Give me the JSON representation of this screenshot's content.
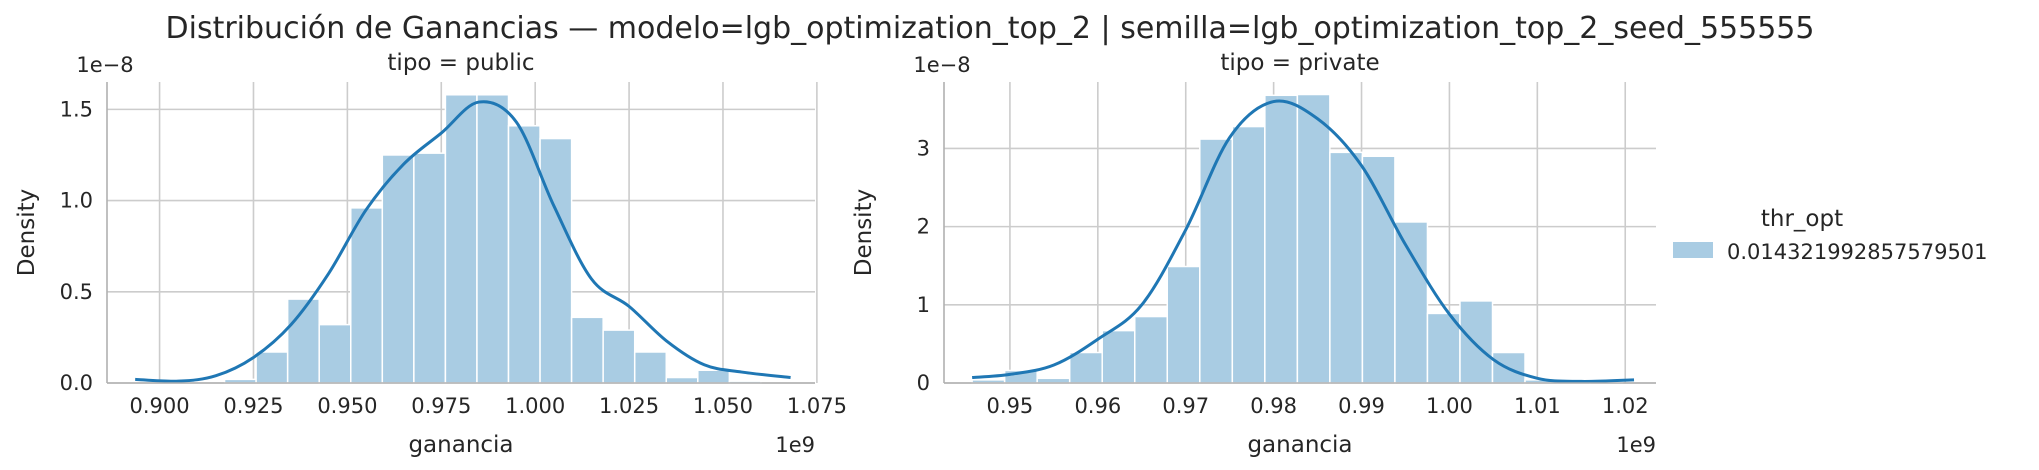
{
  "figure": {
    "title": "Distribución de Ganancias — modelo=lgb_optimization_top_2 | semilla=lgb_optimization_top_2_seed_555555",
    "legend": {
      "title": "thr_opt",
      "entries": [
        "0.014321992857579501"
      ],
      "placement": "right"
    },
    "colors": {
      "hist_fill": "#a9cce3",
      "kde_line": "#1f77b4",
      "grid": "#cccccc",
      "axis": "#b0b0b0"
    }
  },
  "chart_data": [
    {
      "type": "histogram",
      "subplot_title": "tipo = public",
      "xlabel": "ganancia",
      "ylabel": "Density",
      "x_offset_label": "1e9",
      "y_offset_label": "1e−8",
      "xlim": [
        0.886,
        1.0745
      ],
      "ylim": [
        0,
        1.65
      ],
      "grid": true,
      "xticks": [
        0.9,
        0.925,
        0.95,
        0.975,
        1.0,
        1.025,
        1.05,
        1.075
      ],
      "xtick_labels": [
        "0.900",
        "0.925",
        "0.950",
        "0.975",
        "1.000",
        "1.025",
        "1.050",
        "1.075"
      ],
      "yticks": [
        0,
        0.5,
        1.0,
        1.5
      ],
      "ytick_labels": [
        "0.0",
        "0.5",
        "1.0",
        "1.5"
      ],
      "bins": {
        "start": 0.9005,
        "width": 0.0084,
        "values": [
          0.0,
          0.0,
          0.02,
          0.17,
          0.46,
          0.32,
          0.96,
          1.25,
          1.26,
          1.58,
          1.58,
          1.41,
          1.34,
          0.36,
          0.29,
          0.17,
          0.03,
          0.07,
          0.01
        ]
      },
      "kde": {
        "x": [
          0.8935,
          0.905,
          0.915,
          0.925,
          0.935,
          0.945,
          0.955,
          0.965,
          0.975,
          0.985,
          0.995,
          1.005,
          1.015,
          1.025,
          1.035,
          1.045,
          1.055,
          1.068
        ],
        "y": [
          0.02,
          0.01,
          0.04,
          0.14,
          0.32,
          0.6,
          0.95,
          1.2,
          1.37,
          1.54,
          1.43,
          0.97,
          0.57,
          0.42,
          0.23,
          0.1,
          0.06,
          0.03
        ]
      }
    },
    {
      "type": "histogram",
      "subplot_title": "tipo = private",
      "xlabel": "ganancia",
      "ylabel": "Density",
      "x_offset_label": "1e9",
      "y_offset_label": "1e−8",
      "xlim": [
        0.9425,
        1.0235
      ],
      "ylim": [
        0,
        3.85
      ],
      "grid": true,
      "xticks": [
        0.95,
        0.96,
        0.97,
        0.98,
        0.99,
        1.0,
        1.01,
        1.02
      ],
      "xtick_labels": [
        "0.95",
        "0.96",
        "0.97",
        "0.98",
        "0.99",
        "1.00",
        "1.01",
        "1.02"
      ],
      "yticks": [
        0,
        1,
        2,
        3
      ],
      "ytick_labels": [
        "0",
        "1",
        "2",
        "3"
      ],
      "bins": {
        "start": 0.9457,
        "width": 0.0037,
        "values": [
          0.04,
          0.16,
          0.06,
          0.39,
          0.67,
          0.85,
          1.49,
          3.12,
          3.28,
          3.68,
          3.69,
          2.95,
          2.9,
          2.06,
          0.89,
          1.05,
          0.39,
          0.04,
          0.01,
          0.01
        ]
      },
      "kde": {
        "x": [
          0.9457,
          0.95,
          0.955,
          0.96,
          0.965,
          0.97,
          0.975,
          0.98,
          0.985,
          0.99,
          0.995,
          1.0,
          1.005,
          1.01,
          1.015,
          1.021
        ],
        "y": [
          0.07,
          0.11,
          0.23,
          0.56,
          1.0,
          1.96,
          3.14,
          3.6,
          3.38,
          2.78,
          1.77,
          0.88,
          0.3,
          0.06,
          0.02,
          0.04
        ]
      }
    }
  ]
}
